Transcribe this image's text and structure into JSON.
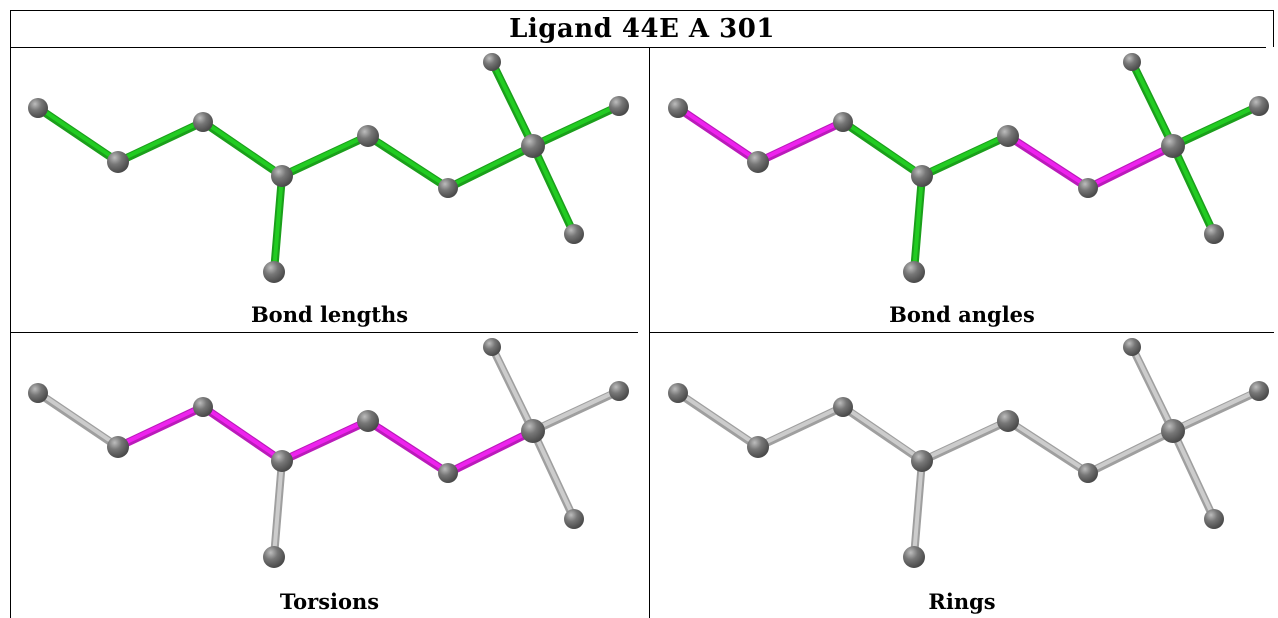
{
  "title": "Ligand 44E A 301",
  "colors": {
    "green": "#22cc22",
    "magenta": "#ee22ee",
    "gray": "#cccccc",
    "atom": "#777777"
  },
  "panels": [
    {
      "caption": "Bond lengths",
      "scheme": [
        "green",
        "green",
        "green",
        "green",
        "green",
        "green",
        "green",
        "green",
        "green",
        "green"
      ]
    },
    {
      "caption": "Bond angles",
      "scheme": [
        "magenta",
        "magenta",
        "green",
        "green",
        "magenta",
        "magenta",
        "green",
        "green",
        "green",
        "green"
      ]
    },
    {
      "caption": "Torsions",
      "scheme": [
        "gray",
        "magenta",
        "magenta",
        "magenta",
        "magenta",
        "magenta",
        "gray",
        "gray",
        "gray",
        "gray"
      ]
    },
    {
      "caption": "Rings",
      "scheme": [
        "gray",
        "gray",
        "gray",
        "gray",
        "gray",
        "gray",
        "gray",
        "gray",
        "gray",
        "gray"
      ]
    }
  ]
}
